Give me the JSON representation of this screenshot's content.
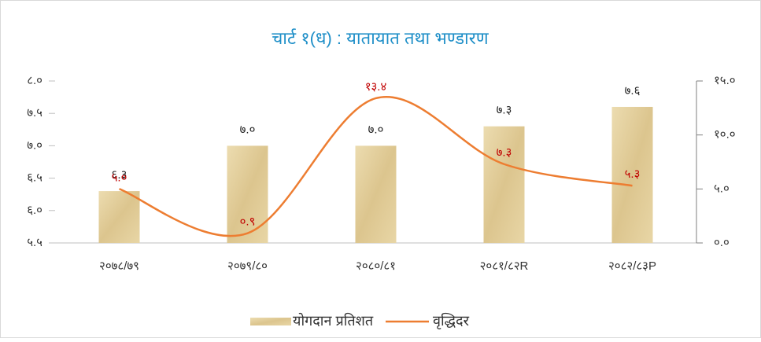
{
  "chart_data": {
    "type": "bar_line",
    "title": "चार्ट १(ध) : यातायात तथा भण्डारण",
    "categories": [
      "२०७८/७९",
      "२०७९/८०",
      "२०८०/८१",
      "२०८१/८२R",
      "२०८२/८३P"
    ],
    "series": [
      {
        "name": "योगदान प्रतिशत",
        "type": "bar",
        "color": "#e3cf9c",
        "values": [
          6.3,
          7.0,
          7.0,
          7.3,
          7.6
        ],
        "value_labels": [
          "६.३",
          "७.०",
          "७.०",
          "७.३",
          "७.६"
        ]
      },
      {
        "name": "वृद्धिदर",
        "type": "line",
        "axis": "y2",
        "color": "#ed7d31",
        "values": [
          5.0,
          0.9,
          13.4,
          7.3,
          5.3
        ],
        "value_labels": [
          "५.०",
          "०.९",
          "१३.४",
          "७.३",
          "५.३"
        ]
      }
    ],
    "ylim": [
      5.5,
      8.0
    ],
    "yticks": [
      {
        "value": 5.5,
        "label": "५.५"
      },
      {
        "value": 6.0,
        "label": "६.०"
      },
      {
        "value": 6.5,
        "label": "६.५"
      },
      {
        "value": 7.0,
        "label": "७.०"
      },
      {
        "value": 7.5,
        "label": "७.५"
      },
      {
        "value": 8.0,
        "label": "८.०"
      }
    ],
    "y2lim": [
      0,
      15
    ],
    "y2ticks": [
      {
        "value": 0,
        "label": "०.०"
      },
      {
        "value": 5,
        "label": "५.०"
      },
      {
        "value": 10,
        "label": "१०.०"
      },
      {
        "value": 15,
        "label": "१५.०"
      }
    ],
    "legend": "bottom"
  }
}
